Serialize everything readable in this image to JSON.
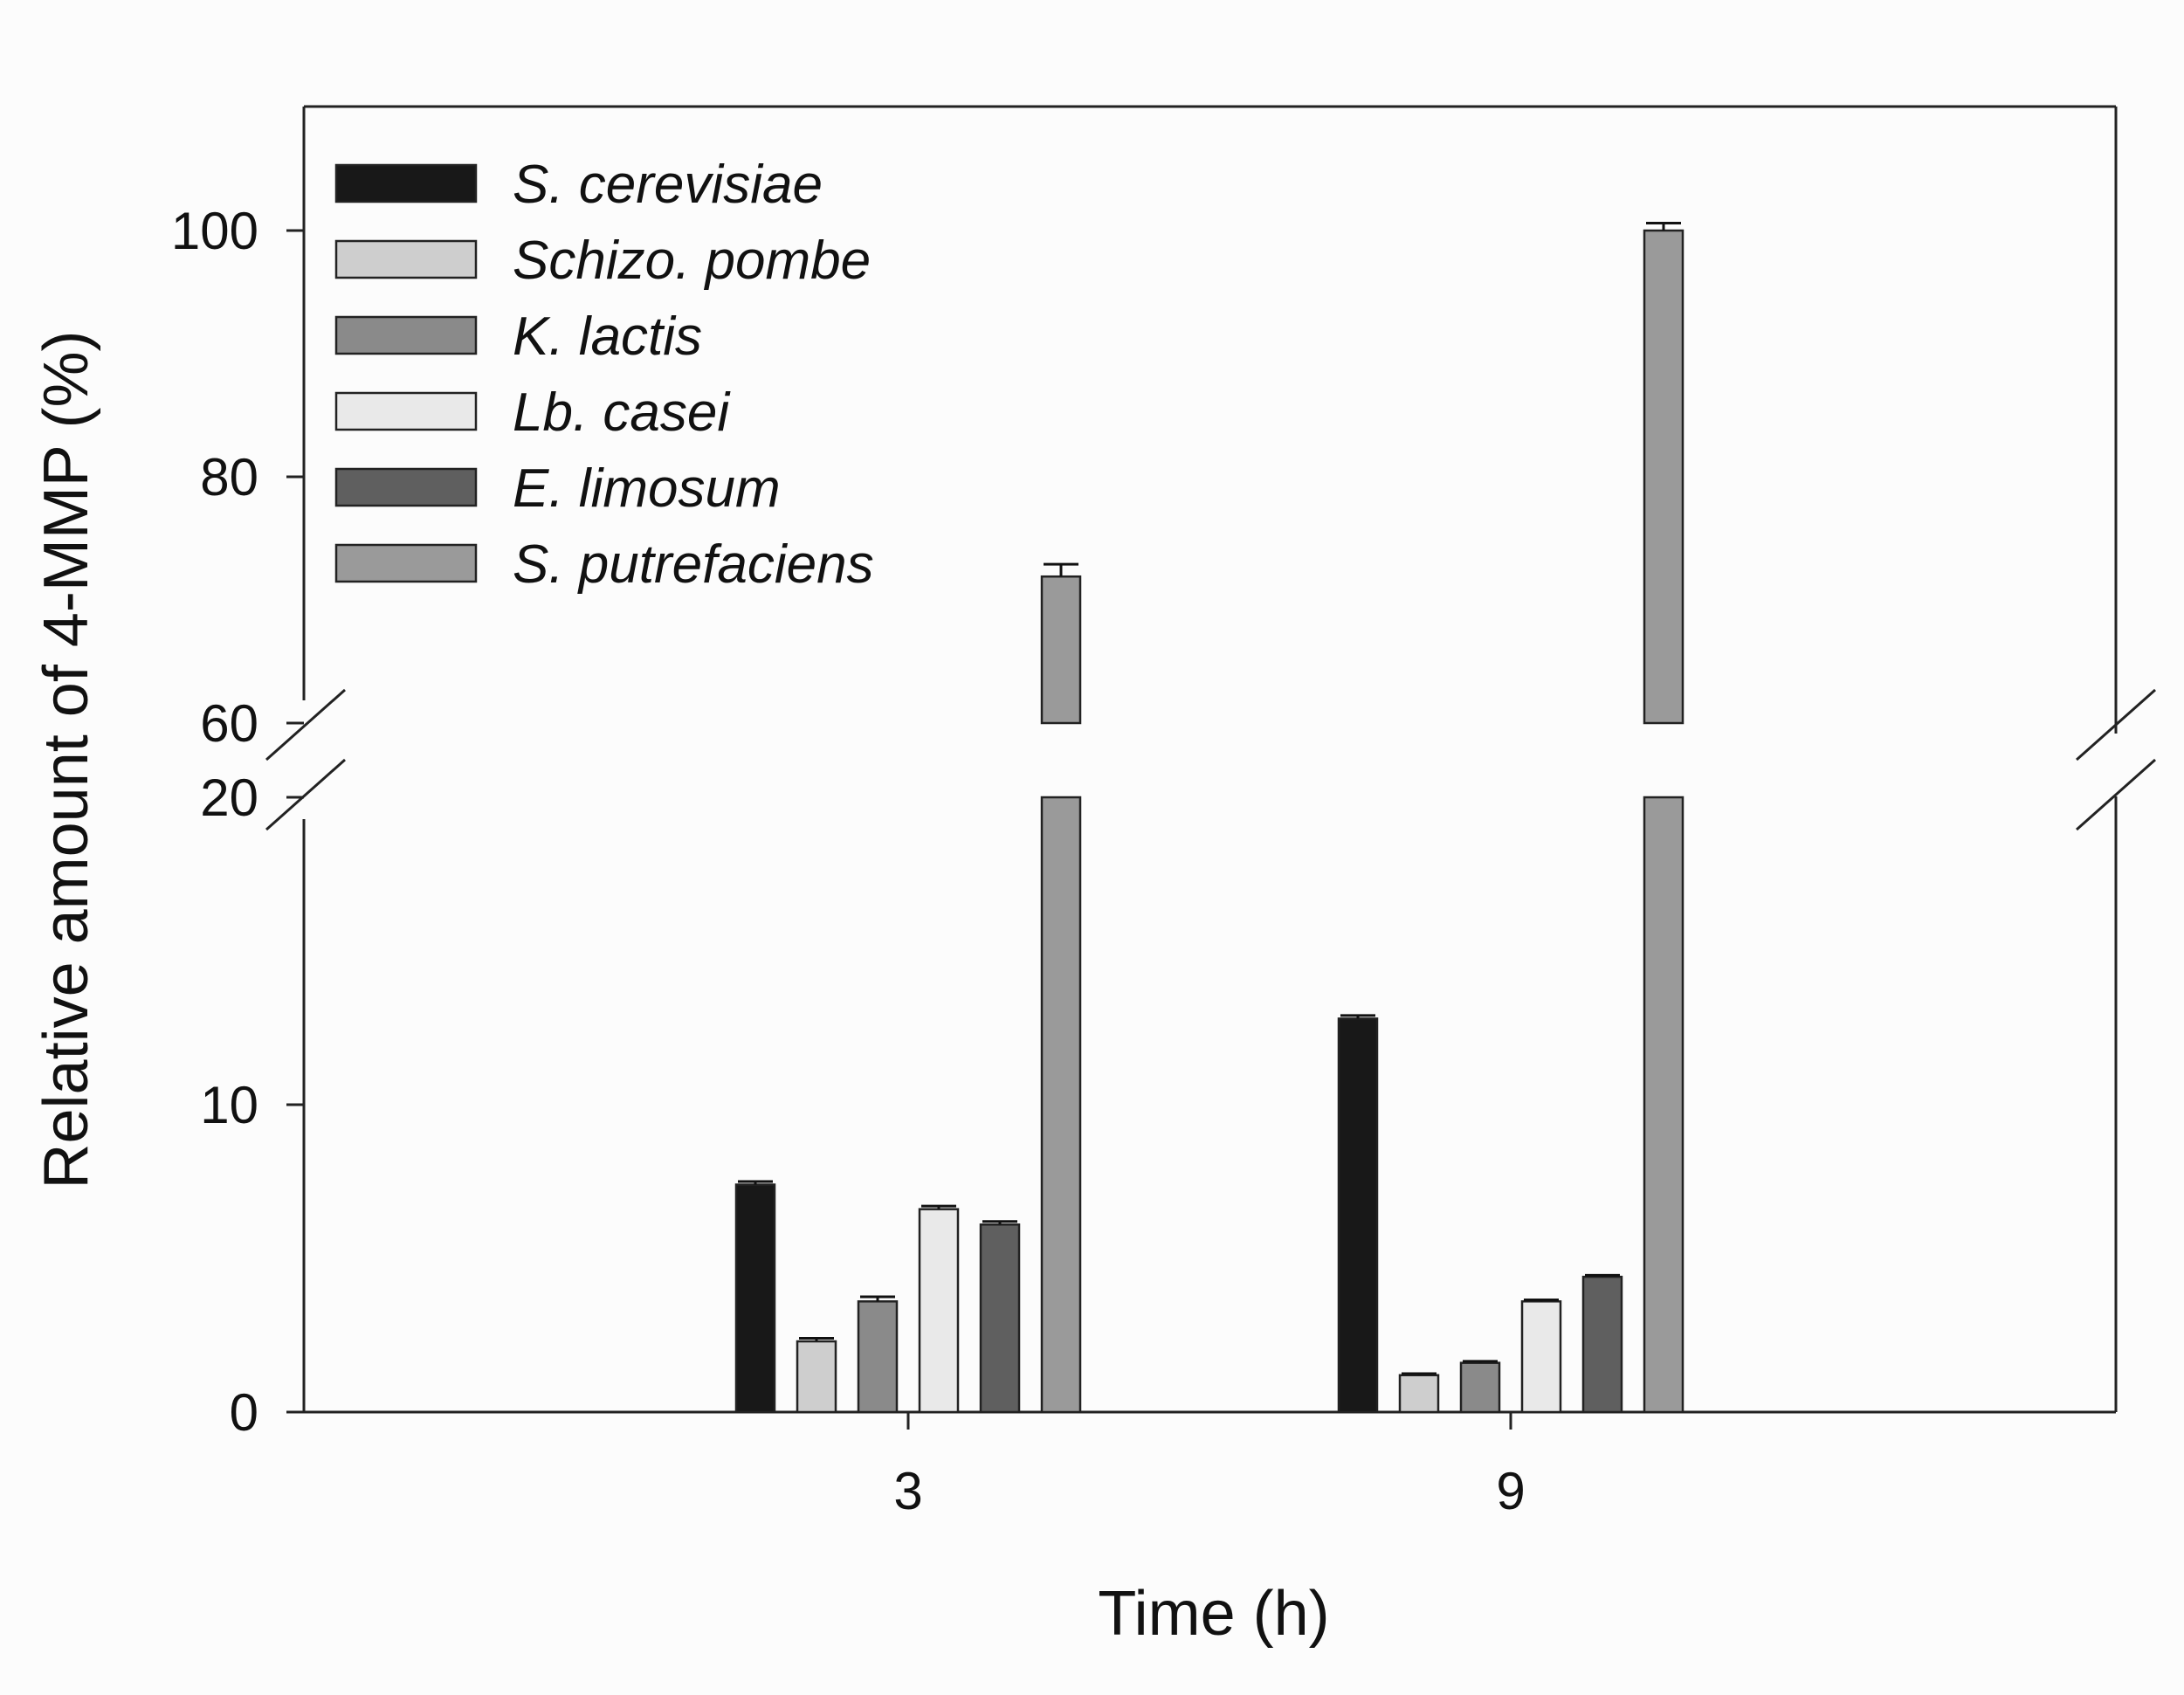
{
  "chart_data": {
    "type": "bar",
    "title": "",
    "xlabel": "Time (h)",
    "ylabel": "Relative amount of 4-MMP (%)",
    "categories": [
      "3",
      "9"
    ],
    "y_axis_break": {
      "lower_range": [
        0,
        20
      ],
      "upper_range": [
        60,
        110
      ]
    },
    "lower_ticks": [
      "0",
      "10",
      "20"
    ],
    "upper_ticks": [
      "60",
      "80",
      "100"
    ],
    "legend_position": "top-left",
    "grid": false,
    "series": [
      {
        "name": "S. cerevisiae",
        "color": "#181818",
        "values": [
          7.4,
          12.8
        ],
        "errors": [
          0.1,
          0.1
        ]
      },
      {
        "name": "Schizo. pombe",
        "color": "#cecece",
        "values": [
          2.3,
          1.2
        ],
        "errors": [
          0.1,
          0.05
        ]
      },
      {
        "name": "K. lactis",
        "color": "#8a8a8a",
        "values": [
          3.6,
          1.6
        ],
        "errors": [
          0.15,
          0.05
        ]
      },
      {
        "name": "Lb. casei",
        "color": "#e9e9e9",
        "values": [
          6.6,
          3.6
        ],
        "errors": [
          0.1,
          0.05
        ]
      },
      {
        "name": "E. limosum",
        "color": "#5f5f5f",
        "values": [
          6.1,
          4.4
        ],
        "errors": [
          0.1,
          0.05
        ]
      },
      {
        "name": "S. putrefaciens",
        "color": "#9a9a9a",
        "values": [
          71.9,
          100.0
        ],
        "errors": [
          1.0,
          0.6
        ]
      }
    ]
  }
}
